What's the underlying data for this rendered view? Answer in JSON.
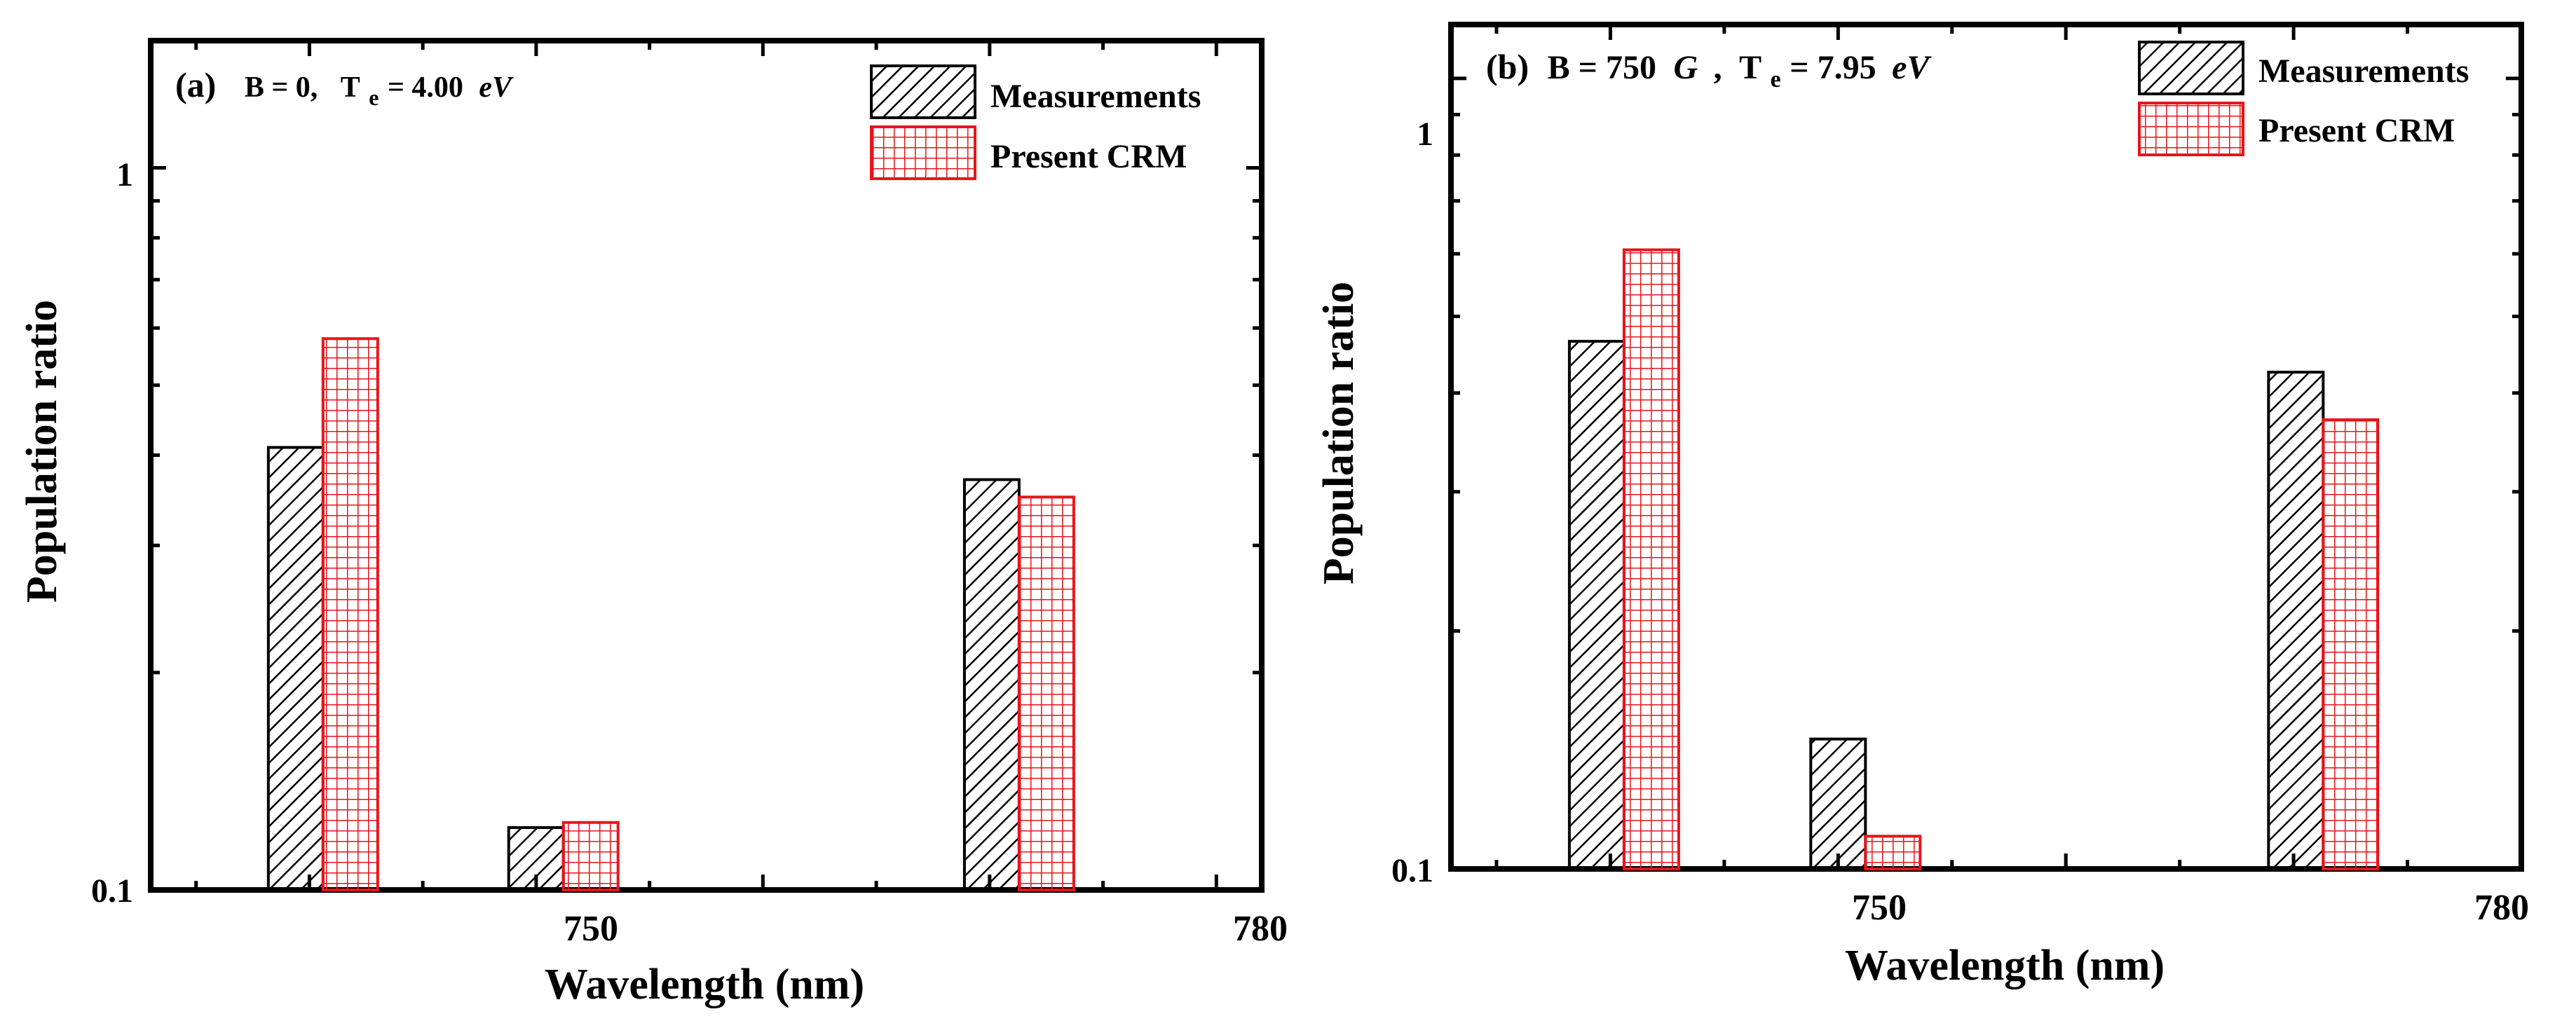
{
  "chart_data": [
    {
      "type": "bar",
      "panel": "(a)",
      "title_parts": {
        "label": "(a)",
        "b": "B = 0,",
        "t": "T",
        "t_sub": "e",
        "t_val": "= 4.00",
        "unit": "eV"
      },
      "xlabel": "Wavelength (nm)",
      "ylabel": "Population ratio",
      "yscale": "log",
      "ylim": [
        0.1,
        1.5
      ],
      "xlim": [
        733,
        782
      ],
      "xticks": [
        750,
        780
      ],
      "xtick_labels": [
        "750",
        "780"
      ],
      "yticks": [
        0.1,
        1
      ],
      "ytick_labels": [
        "0.1",
        "1"
      ],
      "categories": [
        740.6,
        751.2,
        771.3
      ],
      "series": [
        {
          "name": "Measurements",
          "values": [
            0.41,
            0.122,
            0.37
          ]
        },
        {
          "name": "Present CRM",
          "values": [
            0.58,
            0.124,
            0.35
          ]
        }
      ],
      "legend": [
        "Measurements",
        "Present CRM"
      ],
      "legend_position": "top-right"
    },
    {
      "type": "bar",
      "panel": "(b)",
      "title_parts": {
        "label": "(b)",
        "b": "B = 750",
        "g": "G",
        "comma": ",",
        "t": "T",
        "t_sub": "e",
        "t_val": "= 7.95",
        "unit": "eV"
      },
      "xlabel": "Wavelength (nm)",
      "ylabel": "Population ratio",
      "yscale": "log",
      "ylim": [
        0.1,
        1.17
      ],
      "xlim": [
        733,
        780
      ],
      "xticks": [
        750,
        780
      ],
      "xtick_labels": [
        "750",
        "780"
      ],
      "yticks": [
        0.1,
        1
      ],
      "ytick_labels": [
        "0.1",
        "1"
      ],
      "categories": [
        740.6,
        751.2,
        771.3
      ],
      "series": [
        {
          "name": "Measurements",
          "values": [
            0.465,
            0.146,
            0.425
          ]
        },
        {
          "name": "Present CRM",
          "values": [
            0.607,
            0.11,
            0.37
          ]
        }
      ],
      "legend": [
        "Measurements",
        "Present CRM"
      ],
      "legend_position": "top-right"
    }
  ],
  "colors": {
    "measurements": "#000000",
    "crm": "#e8141b"
  }
}
